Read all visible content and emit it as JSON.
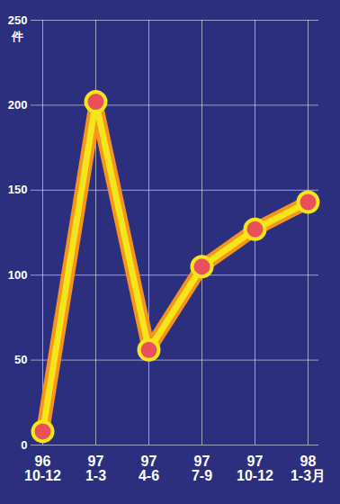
{
  "chart_data": {
    "type": "line",
    "ylabel": "件",
    "categories": [
      "96\n10-12",
      "97\n1-3",
      "97\n4-6",
      "97\n7-9",
      "97\n10-12",
      "98\n1-3月"
    ],
    "values": [
      8,
      202,
      56,
      105,
      127,
      143
    ],
    "color": "#f7941d",
    "marker": "circle",
    "ylim": [
      0,
      250
    ],
    "yticks": [
      0,
      50,
      100,
      150,
      200,
      250
    ],
    "grid": true
  }
}
